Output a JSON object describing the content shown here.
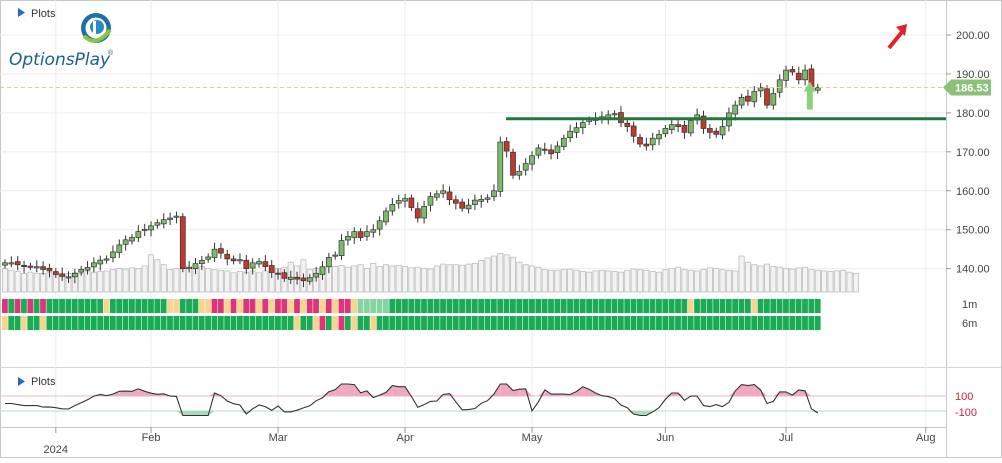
{
  "panels": {
    "top_label": "Plots",
    "bottom_label": "Plots"
  },
  "logo": {
    "text": "OptionsPlay",
    "mark": "®"
  },
  "last_price": "186.53",
  "colors": {
    "up": "#7dbb6a",
    "down": "#c4372b",
    "resistance": "#1e7a3a",
    "price_tag": "#8cc17a",
    "arrow_up": "#8cd07a",
    "arrow_red": "#e0202a",
    "osc_pos": "#f0a8c0",
    "osc_neg": "#a6dcc0",
    "strip_green": "#1aab55",
    "strip_light_green": "#85d4a0",
    "strip_yellow": "#f7d58e",
    "strip_red": "#e0347a"
  },
  "strip_labels": [
    "1m",
    "6m"
  ],
  "chart_data": {
    "type": "candlestick",
    "y_axis": {
      "ticks": [
        140,
        150,
        160,
        170,
        180,
        190,
        200
      ],
      "range": [
        134,
        209
      ]
    },
    "x_axis": {
      "labels": [
        {
          "label": "Feb",
          "index": 23
        },
        {
          "label": "Mar",
          "index": 43
        },
        {
          "label": "Apr",
          "index": 63
        },
        {
          "label": "May",
          "index": 83
        },
        {
          "label": "Jun",
          "index": 104
        },
        {
          "label": "Jul",
          "index": 123
        },
        {
          "label": "Aug",
          "index": 145
        }
      ],
      "year": "2024",
      "year_index": 8
    },
    "resistance": 178.5,
    "closes": [
      141.5,
      141.5,
      141,
      140.5,
      140.5,
      140.5,
      139.8,
      139.4,
      138.5,
      138,
      137.9,
      138.8,
      139.8,
      140.3,
      141.5,
      142.2,
      142.5,
      144.3,
      146.1,
      147.4,
      148,
      149.5,
      150.1,
      151,
      151.8,
      152.6,
      153,
      153.5,
      140,
      140.3,
      141.3,
      142.1,
      143,
      145,
      144,
      142.5,
      142,
      142.3,
      140,
      141.5,
      141.8,
      140.5,
      139,
      138.8,
      137.5,
      137.8,
      137.3,
      136.9,
      137.7,
      138.8,
      140.5,
      142.9,
      143.5,
      147.2,
      148.3,
      149.5,
      148,
      149.5,
      150,
      152.3,
      154.8,
      156.5,
      157.5,
      158,
      155.7,
      153,
      156,
      158.5,
      159.2,
      160,
      157.7,
      156.8,
      155.5,
      156.3,
      157.6,
      157.8,
      158.2,
      160,
      172.5,
      170.2,
      164,
      165,
      167,
      169,
      171,
      170.5,
      169.5,
      171.5,
      173.5,
      175.3,
      176.2,
      177.5,
      178.2,
      178.5,
      179,
      179.5,
      179.8,
      177.5,
      176.5,
      174,
      172,
      171.5,
      173.5,
      174.5,
      176,
      177,
      176.5,
      175,
      178,
      179.5,
      176,
      175,
      174.5,
      176.5,
      180,
      182,
      184,
      183,
      185.5,
      186.5,
      182,
      185,
      188.5,
      191,
      190.5,
      188.5,
      191,
      186,
      186.53
    ],
    "volume_baseline_pct": [
      38,
      35,
      33,
      30,
      32,
      30,
      30,
      31,
      30,
      28,
      30,
      31,
      30,
      34,
      32,
      33,
      34,
      36,
      38,
      37,
      39,
      38,
      42,
      60,
      52,
      44,
      36,
      38,
      40,
      42,
      39,
      41,
      38,
      36,
      35,
      34,
      31,
      33,
      32,
      34,
      31,
      34,
      36,
      38,
      40,
      48,
      42,
      52,
      36,
      38,
      40,
      42,
      41,
      43,
      40,
      42,
      44,
      38,
      46,
      41,
      44,
      42,
      43,
      41,
      39,
      40,
      38,
      37,
      42,
      45,
      44,
      44,
      43,
      45,
      46,
      51,
      55,
      58,
      62,
      60,
      56,
      48,
      44,
      42,
      40,
      36,
      35,
      35,
      36,
      37,
      35,
      33,
      32,
      34,
      35,
      34,
      33,
      32,
      35,
      37,
      36,
      35,
      33,
      32,
      36,
      38,
      40,
      36,
      35,
      34,
      36,
      39,
      38,
      36,
      35,
      34,
      58,
      48,
      44,
      42,
      45,
      41,
      40,
      38,
      37,
      39,
      40,
      36,
      35,
      34,
      33,
      34,
      35,
      32,
      30
    ]
  }
}
